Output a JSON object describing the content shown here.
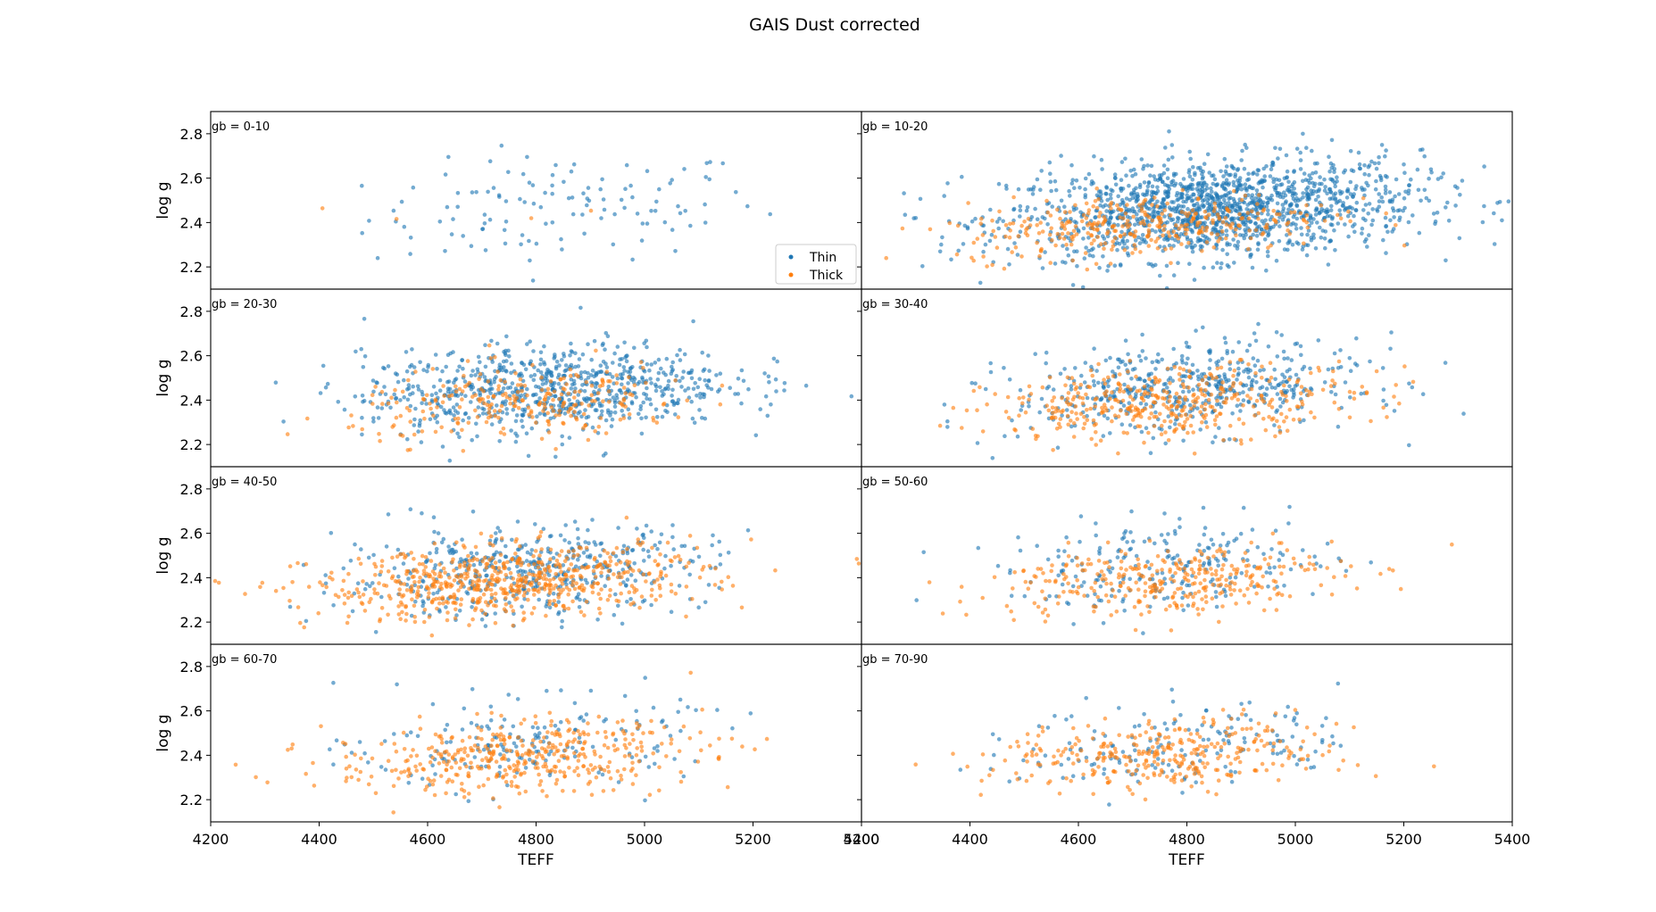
{
  "figure": {
    "title": "GAIS Dust corrected"
  },
  "chart_data": {
    "type": "scatter",
    "xlabel": "TEFF",
    "ylabel": "log g",
    "xlim": [
      4200,
      5400
    ],
    "ylim": [
      2.1,
      2.9
    ],
    "x_ticks": [
      4200,
      4400,
      4600,
      4800,
      5000,
      5200,
      5400
    ],
    "y_ticks": [
      2.2,
      2.4,
      2.6,
      2.8
    ],
    "legend": {
      "entries": [
        "Thin",
        "Thick"
      ],
      "location": "lower right",
      "panel": 0
    },
    "colors": {
      "Thin": "#1f77b4",
      "Thick": "#ff7f0e"
    },
    "grid": false,
    "layout": {
      "rows": 4,
      "cols": 2,
      "sharex": true,
      "sharey": true
    },
    "panels": [
      {
        "label": "gb = 0-10",
        "thin": {
          "n": 120,
          "center": [
            4850,
            2.46
          ],
          "spread": [
            180,
            0.12
          ]
        },
        "thick": {
          "n": 4,
          "center": [
            4750,
            2.42
          ],
          "spread": [
            150,
            0.08
          ]
        }
      },
      {
        "label": "gb = 10-20",
        "thin": {
          "n": 1500,
          "center": [
            4850,
            2.46
          ],
          "spread": [
            190,
            0.11
          ]
        },
        "thick": {
          "n": 350,
          "center": [
            4720,
            2.39
          ],
          "spread": [
            170,
            0.07
          ]
        }
      },
      {
        "label": "gb = 20-30",
        "thin": {
          "n": 780,
          "center": [
            4820,
            2.45
          ],
          "spread": [
            170,
            0.1
          ]
        },
        "thick": {
          "n": 260,
          "center": [
            4780,
            2.39
          ],
          "spread": [
            160,
            0.08
          ]
        }
      },
      {
        "label": "gb = 30-40",
        "thin": {
          "n": 520,
          "center": [
            4800,
            2.45
          ],
          "spread": [
            160,
            0.1
          ]
        },
        "thick": {
          "n": 420,
          "center": [
            4780,
            2.39
          ],
          "spread": [
            170,
            0.08
          ]
        }
      },
      {
        "label": "gb = 40-50",
        "thin": {
          "n": 480,
          "center": [
            4780,
            2.43
          ],
          "spread": [
            170,
            0.1
          ]
        },
        "thick": {
          "n": 640,
          "center": [
            4750,
            2.38
          ],
          "spread": [
            180,
            0.08
          ]
        }
      },
      {
        "label": "gb = 50-60",
        "thin": {
          "n": 230,
          "center": [
            4770,
            2.45
          ],
          "spread": [
            150,
            0.1
          ]
        },
        "thick": {
          "n": 330,
          "center": [
            4760,
            2.39
          ],
          "spread": [
            160,
            0.08
          ]
        }
      },
      {
        "label": "gb = 60-70",
        "thin": {
          "n": 180,
          "center": [
            4780,
            2.45
          ],
          "spread": [
            150,
            0.1
          ]
        },
        "thick": {
          "n": 420,
          "center": [
            4760,
            2.39
          ],
          "spread": [
            170,
            0.08
          ]
        }
      },
      {
        "label": "gb = 70-90",
        "thin": {
          "n": 170,
          "center": [
            4790,
            2.45
          ],
          "spread": [
            150,
            0.1
          ]
        },
        "thick": {
          "n": 320,
          "center": [
            4770,
            2.4
          ],
          "spread": [
            160,
            0.08
          ]
        }
      }
    ]
  }
}
